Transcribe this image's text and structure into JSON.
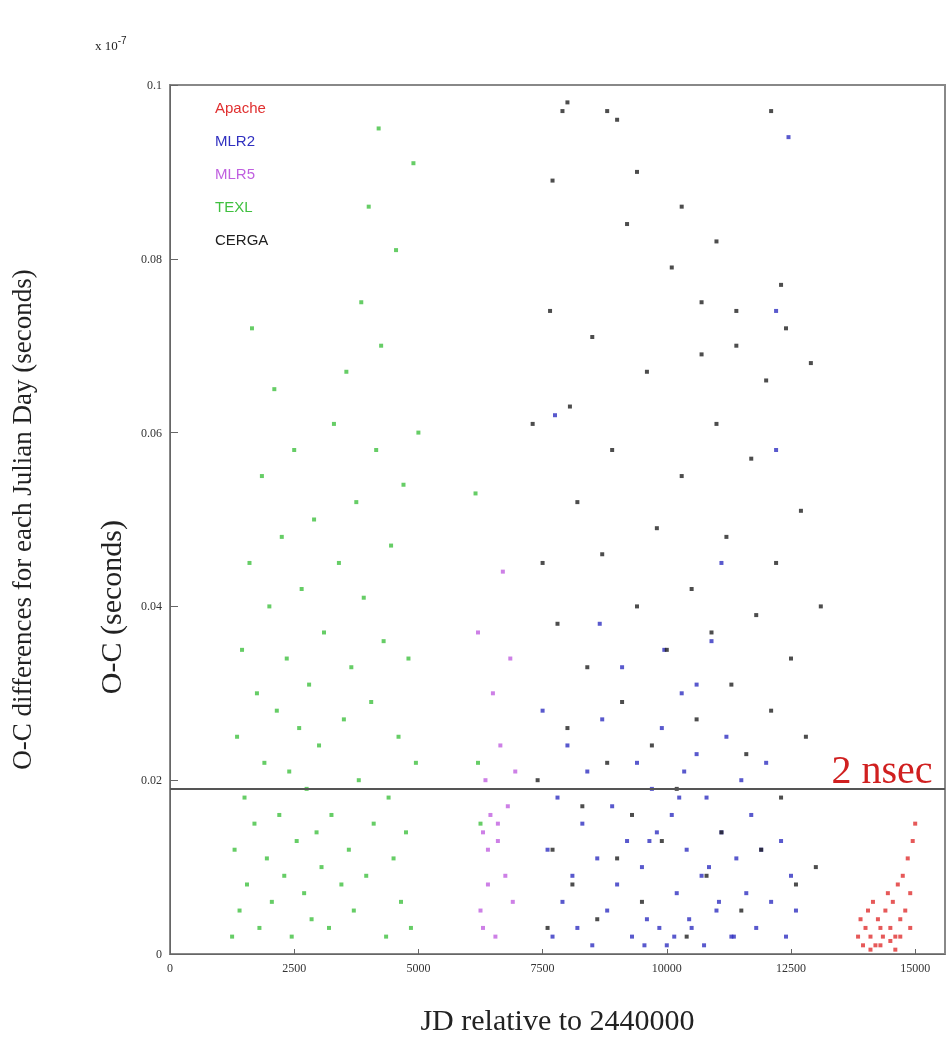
{
  "chart_data": {
    "type": "scatter",
    "xlabel": "JD relative to 2440000",
    "ylabel": "O-C differences for each Julian Day (seconds)",
    "annotations": [
      "O-C (seconds)",
      "x 10$^{-7}$"
    ],
    "xlim": [
      0,
      15600
    ],
    "xticks": [
      0,
      2500,
      5000,
      7500,
      10000,
      12500,
      15000
    ],
    "ylim": [
      0,
      0.1
    ],
    "yticks": [
      0,
      0.02,
      0.04,
      0.06,
      0.08,
      0.1
    ],
    "grid": false,
    "legend": "top left",
    "marker": "square",
    "ref_lines": [
      {
        "axis": "y",
        "value": 0.019,
        "label": "2 nsec",
        "color": "#555555"
      }
    ],
    "series": [
      {
        "name": "Apache",
        "color": "#e03030",
        "x": [
          13850,
          13900,
          13950,
          14000,
          14050,
          14100,
          14150,
          14200,
          14250,
          14300,
          14350,
          14400,
          14450,
          14500,
          14550,
          14600,
          14650,
          14700,
          14750,
          14800,
          14850,
          14900,
          14950,
          15000,
          14100,
          14300,
          14500,
          14700,
          14900,
          14600
        ],
        "values": [
          0.002,
          0.004,
          0.001,
          0.003,
          0.005,
          0.002,
          0.006,
          0.001,
          0.004,
          0.003,
          0.002,
          0.005,
          0.007,
          0.003,
          0.006,
          0.002,
          0.008,
          0.004,
          0.009,
          0.005,
          0.011,
          0.007,
          0.013,
          0.015,
          0.0005,
          0.001,
          0.0015,
          0.002,
          0.003,
          0.0005
        ]
      },
      {
        "name": "MLR2",
        "color": "#3030c0",
        "x": [
          7500,
          7600,
          7700,
          7800,
          7900,
          8000,
          8100,
          8200,
          8300,
          8400,
          8500,
          8600,
          8700,
          8800,
          8900,
          9000,
          9100,
          9200,
          9300,
          9400,
          9500,
          9600,
          9700,
          9800,
          9900,
          10000,
          10100,
          10200,
          10300,
          10400,
          10500,
          10600,
          10700,
          10800,
          10900,
          11000,
          11100,
          11200,
          11300,
          11400,
          11500,
          11600,
          11700,
          11800,
          11900,
          12000,
          12100,
          12200,
          12300,
          12400,
          12500,
          12600,
          9550,
          9850,
          10150,
          10450,
          10750,
          11050,
          11350,
          9650,
          10250,
          10850,
          8650,
          7750,
          12200,
          12450,
          11100,
          10600,
          9950,
          10350
        ],
        "values": [
          0.028,
          0.012,
          0.002,
          0.018,
          0.006,
          0.024,
          0.009,
          0.003,
          0.015,
          0.021,
          0.001,
          0.011,
          0.027,
          0.005,
          0.017,
          0.008,
          0.033,
          0.013,
          0.002,
          0.022,
          0.01,
          0.004,
          0.019,
          0.014,
          0.026,
          0.001,
          0.016,
          0.007,
          0.03,
          0.012,
          0.003,
          0.023,
          0.009,
          0.018,
          0.036,
          0.005,
          0.014,
          0.025,
          0.002,
          0.011,
          0.02,
          0.007,
          0.016,
          0.003,
          0.012,
          0.022,
          0.006,
          0.058,
          0.013,
          0.002,
          0.009,
          0.005,
          0.001,
          0.003,
          0.002,
          0.004,
          0.001,
          0.006,
          0.002,
          0.013,
          0.018,
          0.01,
          0.038,
          0.062,
          0.074,
          0.094,
          0.045,
          0.031,
          0.035,
          0.021
        ]
      },
      {
        "name": "MLR5",
        "color": "#c060e0",
        "x": [
          6200,
          6250,
          6300,
          6350,
          6400,
          6450,
          6500,
          6550,
          6600,
          6650,
          6700,
          6750,
          6800,
          6850,
          6900,
          6950,
          6400,
          6600,
          6300
        ],
        "values": [
          0.037,
          0.005,
          0.014,
          0.02,
          0.008,
          0.016,
          0.03,
          0.002,
          0.013,
          0.024,
          0.044,
          0.009,
          0.017,
          0.034,
          0.006,
          0.021,
          0.012,
          0.015,
          0.003
        ]
      },
      {
        "name": "TEXL",
        "color": "#40c040",
        "x": [
          1250,
          1300,
          1350,
          1400,
          1450,
          1500,
          1550,
          1600,
          1650,
          1700,
          1750,
          1800,
          1850,
          1900,
          1950,
          2000,
          2050,
          2100,
          2150,
          2200,
          2250,
          2300,
          2350,
          2400,
          2450,
          2500,
          2550,
          2600,
          2650,
          2700,
          2750,
          2800,
          2850,
          2900,
          2950,
          3000,
          3050,
          3100,
          3200,
          3250,
          3300,
          3400,
          3450,
          3500,
          3550,
          3600,
          3650,
          3700,
          3750,
          3800,
          3850,
          3900,
          3950,
          4000,
          4050,
          4100,
          4150,
          4200,
          4250,
          4300,
          4350,
          4400,
          4450,
          4500,
          4550,
          4600,
          4650,
          4700,
          4750,
          4800,
          4850,
          4900,
          4950,
          5000,
          6150,
          6200,
          6250
        ],
        "values": [
          0.002,
          0.012,
          0.025,
          0.005,
          0.035,
          0.018,
          0.008,
          0.045,
          0.072,
          0.015,
          0.03,
          0.003,
          0.055,
          0.022,
          0.011,
          0.04,
          0.006,
          0.065,
          0.028,
          0.016,
          0.048,
          0.009,
          0.034,
          0.021,
          0.002,
          0.058,
          0.013,
          0.026,
          0.042,
          0.007,
          0.019,
          0.031,
          0.004,
          0.05,
          0.014,
          0.024,
          0.01,
          0.037,
          0.003,
          0.016,
          0.061,
          0.045,
          0.008,
          0.027,
          0.067,
          0.012,
          0.033,
          0.005,
          0.052,
          0.02,
          0.075,
          0.041,
          0.009,
          0.086,
          0.029,
          0.015,
          0.058,
          0.095,
          0.07,
          0.036,
          0.002,
          0.018,
          0.047,
          0.011,
          0.081,
          0.025,
          0.006,
          0.054,
          0.014,
          0.034,
          0.003,
          0.091,
          0.022,
          0.06,
          0.053,
          0.022,
          0.015
        ]
      },
      {
        "name": "CERGA",
        "color": "#202020",
        "x": [
          7300,
          7400,
          7500,
          7600,
          7650,
          7700,
          7800,
          7900,
          8000,
          8050,
          8100,
          8200,
          8300,
          8400,
          8500,
          8600,
          8700,
          8800,
          8900,
          9000,
          9100,
          9200,
          9300,
          9400,
          9500,
          9600,
          9700,
          9800,
          9900,
          10000,
          10100,
          10200,
          10300,
          10400,
          10500,
          10600,
          10700,
          10800,
          10900,
          11000,
          11100,
          11200,
          11300,
          11400,
          11500,
          11600,
          11700,
          11800,
          11900,
          12000,
          12100,
          12200,
          12300,
          12400,
          12500,
          12600,
          12700,
          12800,
          12900,
          13000,
          13100,
          7700,
          8000,
          8800,
          9000,
          9400,
          10300,
          11000,
          12100,
          12300,
          11400,
          10700
        ],
        "values": [
          0.061,
          0.02,
          0.045,
          0.003,
          0.074,
          0.012,
          0.038,
          0.097,
          0.026,
          0.063,
          0.008,
          0.052,
          0.017,
          0.033,
          0.071,
          0.004,
          0.046,
          0.022,
          0.058,
          0.011,
          0.029,
          0.084,
          0.016,
          0.04,
          0.006,
          0.067,
          0.024,
          0.049,
          0.013,
          0.035,
          0.079,
          0.019,
          0.055,
          0.002,
          0.042,
          0.027,
          0.069,
          0.009,
          0.037,
          0.061,
          0.014,
          0.048,
          0.031,
          0.074,
          0.005,
          0.023,
          0.057,
          0.039,
          0.012,
          0.066,
          0.028,
          0.045,
          0.018,
          0.072,
          0.034,
          0.008,
          0.051,
          0.025,
          0.068,
          0.01,
          0.04,
          0.089,
          0.098,
          0.097,
          0.096,
          0.09,
          0.086,
          0.082,
          0.097,
          0.077,
          0.07,
          0.075
        ]
      }
    ]
  }
}
